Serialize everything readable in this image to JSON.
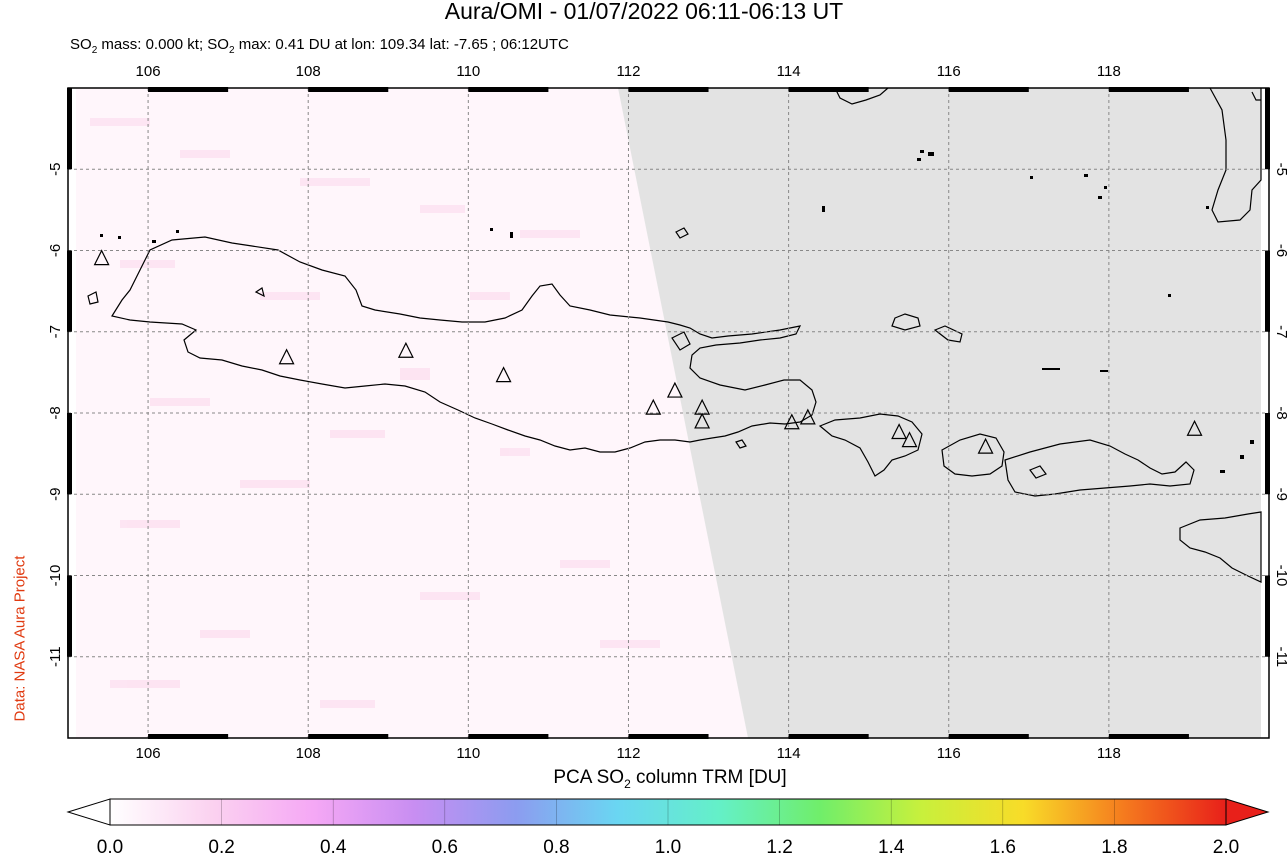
{
  "header": {
    "title": "Aura/OMI - 01/07/2022 06:11-06:13 UT",
    "subtitle_prefix": "SO",
    "subtitle_sub": "2",
    "subtitle_mid": " mass: 0.000 kt; SO",
    "subtitle_sub2": "2",
    "subtitle_rest": " max: 0.41 DU at lon: 109.34 lat: -7.65 ; 06:12UTC"
  },
  "credit": "Data: NASA Aura Project",
  "map": {
    "lon_range": [
      105,
      120
    ],
    "lat_range": [
      -12,
      -4
    ],
    "lon_ticks": [
      "106",
      "108",
      "110",
      "112",
      "114",
      "116",
      "118"
    ],
    "lat_ticks": [
      "-5",
      "-6",
      "-7",
      "-8",
      "-9",
      "-10",
      "-11"
    ],
    "volcanoes": [
      [
        105.42,
        -6.1
      ],
      [
        107.73,
        -7.32
      ],
      [
        109.22,
        -7.24
      ],
      [
        110.44,
        -7.54
      ],
      [
        112.31,
        -7.94
      ],
      [
        112.58,
        -7.73
      ],
      [
        112.92,
        -7.94
      ],
      [
        112.92,
        -8.11
      ],
      [
        114.04,
        -8.12
      ],
      [
        114.24,
        -8.06
      ],
      [
        115.38,
        -8.24
      ],
      [
        115.51,
        -8.34
      ],
      [
        116.46,
        -8.42
      ],
      [
        119.07,
        -8.2
      ]
    ],
    "colors": {
      "no_data": "#e3e3e3",
      "coast": "#000000",
      "grid": "#888888"
    }
  },
  "colorbar": {
    "label_prefix": "PCA SO",
    "label_sub": "2",
    "label_rest": " column TRM [DU]",
    "ticks": [
      "0.0",
      "0.2",
      "0.4",
      "0.6",
      "0.8",
      "1.0",
      "1.2",
      "1.4",
      "1.6",
      "1.8",
      "2.0"
    ],
    "colors": [
      "#ffffff",
      "#fbd2f0",
      "#f5a8f5",
      "#c88ef2",
      "#8c9cf0",
      "#6ad6f2",
      "#64f0c8",
      "#70ee6a",
      "#c8f03c",
      "#f8dc28",
      "#f57a1e",
      "#e8201a"
    ]
  }
}
